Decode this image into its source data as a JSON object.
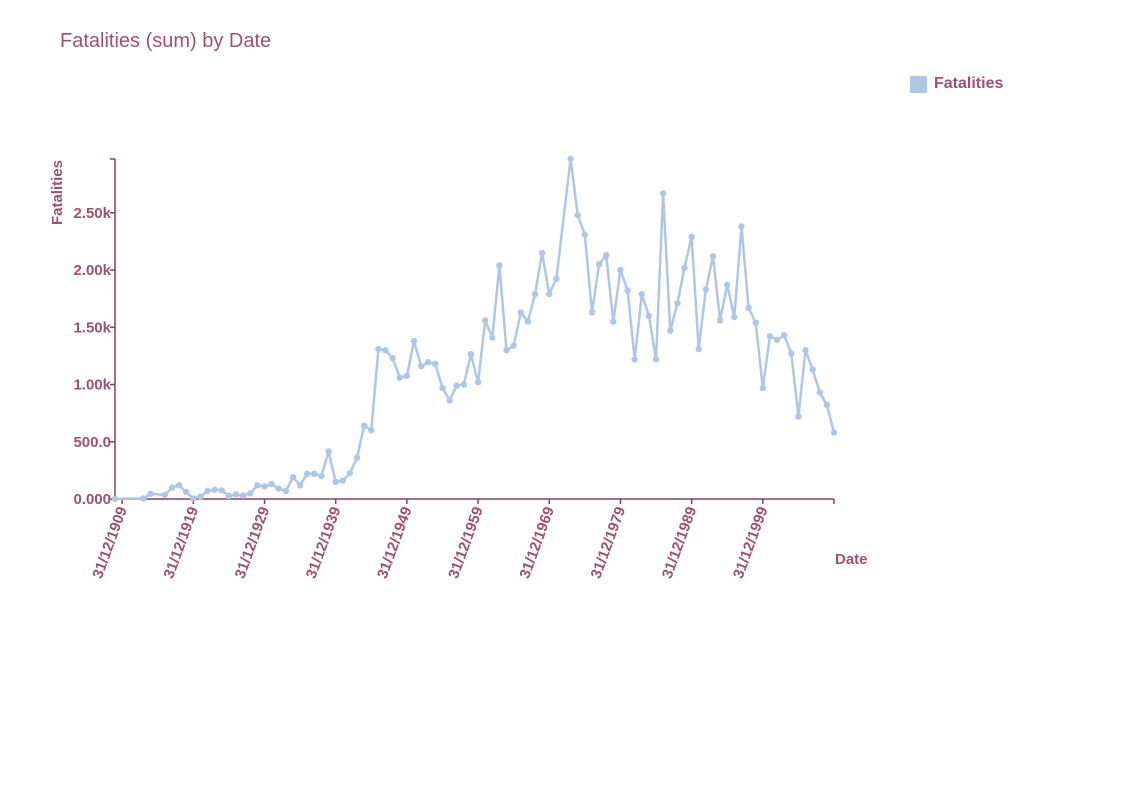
{
  "chart_data": {
    "type": "line",
    "title": "Fatalities (sum) by Date",
    "xlabel": "Date",
    "ylabel": "Fatalities",
    "legend": {
      "position": "top-right"
    },
    "colors": {
      "line": "#aec7e8",
      "text": "#a0516e",
      "axis": "#8e3e5c"
    },
    "x_axis": {
      "type": "date",
      "range": [
        "1908-12-31",
        "2009-12-31"
      ],
      "tick_labels": [
        "31/12/1909",
        "31/12/1919",
        "31/12/1929",
        "31/12/1939",
        "31/12/1949",
        "31/12/1959",
        "31/12/1969",
        "31/12/1979",
        "31/12/1989",
        "31/12/1999"
      ]
    },
    "y_axis": {
      "range": [
        0,
        2970
      ],
      "tick_values": [
        0,
        500,
        1000,
        1500,
        2000,
        2500
      ],
      "tick_labels": [
        "0.000",
        "500.0",
        "1.00k",
        "1.50k",
        "2.00k",
        "2.50k"
      ]
    },
    "grid": false,
    "series": [
      {
        "name": "Fatalities",
        "x": [
          "1908-12-31",
          "1912-12-31",
          "1913-12-31",
          "1915-12-31",
          "1916-12-31",
          "1917-12-31",
          "1918-12-31",
          "1919-12-31",
          "1920-12-31",
          "1921-12-31",
          "1922-12-31",
          "1923-12-31",
          "1924-12-31",
          "1925-12-31",
          "1926-12-31",
          "1927-12-31",
          "1928-12-31",
          "1929-12-31",
          "1930-12-31",
          "1931-12-31",
          "1932-12-31",
          "1933-12-31",
          "1934-12-31",
          "1935-12-31",
          "1936-12-31",
          "1937-12-31",
          "1938-12-31",
          "1939-12-31",
          "1940-12-31",
          "1941-12-31",
          "1942-12-31",
          "1943-12-31",
          "1944-12-31",
          "1945-12-31",
          "1946-12-31",
          "1947-12-31",
          "1948-12-31",
          "1949-12-31",
          "1950-12-31",
          "1951-12-31",
          "1952-12-31",
          "1953-12-31",
          "1954-12-31",
          "1955-12-31",
          "1956-12-31",
          "1957-12-31",
          "1958-12-31",
          "1959-12-31",
          "1960-12-31",
          "1961-12-31",
          "1962-12-31",
          "1963-12-31",
          "1964-12-31",
          "1965-12-31",
          "1966-12-31",
          "1967-12-31",
          "1968-12-31",
          "1969-12-31",
          "1970-12-31",
          "1972-12-31",
          "1973-12-31",
          "1974-12-31",
          "1975-12-31",
          "1976-12-31",
          "1977-12-31",
          "1978-12-31",
          "1979-12-31",
          "1980-12-31",
          "1981-12-31",
          "1982-12-31",
          "1983-12-31",
          "1984-12-31",
          "1985-12-31",
          "1986-12-31",
          "1987-12-31",
          "1988-12-31",
          "1989-12-31",
          "1990-12-31",
          "1991-12-31",
          "1992-12-31",
          "1993-12-31",
          "1994-12-31",
          "1995-12-31",
          "1996-12-31",
          "1997-12-31",
          "1998-12-31",
          "1999-12-31",
          "2000-12-31",
          "2001-12-31",
          "2002-12-31",
          "2003-12-31",
          "2004-12-31",
          "2005-12-31",
          "2006-12-31",
          "2007-12-31",
          "2008-12-31",
          "2009-12-31"
        ],
        "values": [
          2,
          5,
          45,
          35,
          100,
          120,
          60,
          5,
          20,
          70,
          80,
          75,
          25,
          40,
          30,
          50,
          120,
          110,
          130,
          90,
          70,
          190,
          120,
          220,
          220,
          200,
          415,
          150,
          160,
          225,
          360,
          640,
          600,
          1310,
          1300,
          1230,
          1060,
          1075,
          1380,
          1160,
          1195,
          1180,
          970,
          860,
          990,
          1000,
          1265,
          1020,
          1560,
          1410,
          2040,
          1300,
          1340,
          1630,
          1550,
          1790,
          2150,
          1790,
          1925,
          2970,
          2480,
          2310,
          1630,
          2050,
          2130,
          1550,
          2000,
          1820,
          1220,
          1790,
          1600,
          1220,
          2670,
          1470,
          1710,
          2020,
          2290,
          1310,
          1830,
          2120,
          1560,
          1870,
          1590,
          2380,
          1670,
          1540,
          970,
          1420,
          1390,
          1430,
          1270,
          720,
          1300,
          1130,
          930,
          820,
          580
        ]
      }
    ]
  }
}
